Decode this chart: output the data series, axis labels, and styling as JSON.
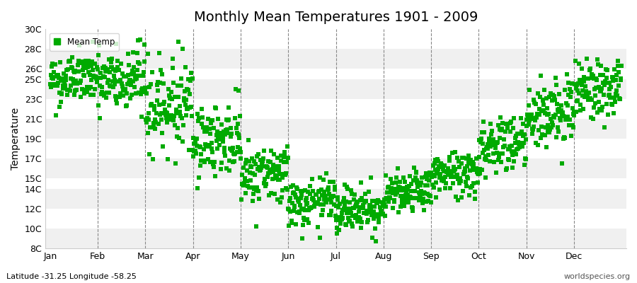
{
  "title": "Monthly Mean Temperatures 1901 - 2009",
  "ylabel": "Temperature",
  "subtitle": "Latitude -31.25 Longitude -58.25",
  "watermark": "worldspecies.org",
  "legend_label": "Mean Temp",
  "ylim": [
    8,
    30
  ],
  "ytick_vals": [
    8,
    10,
    12,
    14,
    15,
    17,
    19,
    21,
    23,
    25,
    26,
    28,
    30
  ],
  "ytick_labels": [
    "8C",
    "10C",
    "12C",
    "14C",
    "15C",
    "17C",
    "19C",
    "21C",
    "23C",
    "25C",
    "26C",
    "28C",
    "30C"
  ],
  "months": [
    "Jan",
    "Feb",
    "Mar",
    "Apr",
    "May",
    "Jun",
    "Jul",
    "Aug",
    "Sep",
    "Oct",
    "Nov",
    "Dec"
  ],
  "mean_temps": [
    25.0,
    24.8,
    22.5,
    19.0,
    15.5,
    12.5,
    12.0,
    13.5,
    15.5,
    18.5,
    21.5,
    24.0
  ],
  "std_devs": [
    1.3,
    1.8,
    2.2,
    1.8,
    1.5,
    1.2,
    1.2,
    1.0,
    1.2,
    1.5,
    1.8,
    1.5
  ],
  "scatter_color": "#00AA00",
  "plot_bg": "#FFFFFF",
  "fig_bg": "#FFFFFF",
  "band_color_a": "#F0F0F0",
  "band_color_b": "#FFFFFF",
  "band_boundaries": [
    8,
    10,
    12,
    14,
    15,
    17,
    19,
    21,
    23,
    25,
    26,
    28,
    30
  ],
  "marker": "s",
  "marker_size": 18,
  "n_years": 109,
  "seed": 42,
  "title_fontsize": 14,
  "axis_fontsize": 9,
  "ylabel_fontsize": 10
}
